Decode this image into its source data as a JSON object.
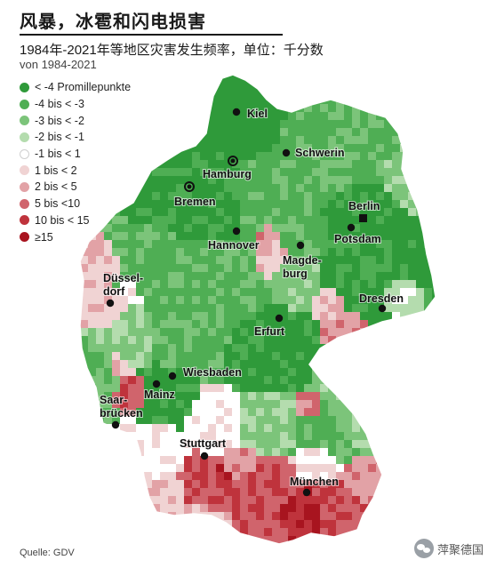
{
  "title": "风暴，冰雹和闪电损害",
  "subtitle": "1984年-2021年等地区灾害发生频率，单位：千分数",
  "subtitle2": "von 1984-2021",
  "legend": [
    {
      "label": "< -4 Promillepunkte",
      "color": "#2f9a3a"
    },
    {
      "label": "-4 bis < -3",
      "color": "#4fae54"
    },
    {
      "label": "-3 bis < -2",
      "color": "#7cc47a"
    },
    {
      "label": "-2 bis < -1",
      "color": "#b4dcae"
    },
    {
      "label": "-1 bis < 1",
      "color": "#ffffff"
    },
    {
      "label": "1 bis < 2",
      "color": "#f0d3d3"
    },
    {
      "label": "2 bis < 5",
      "color": "#e2a2a6"
    },
    {
      "label": "5 bis <10",
      "color": "#d0646c"
    },
    {
      "label": "10 bis < 15",
      "color": "#bf333c"
    },
    {
      "label": "≥15",
      "color": "#a8141f"
    }
  ],
  "cities": [
    {
      "name": "Kiel",
      "line2": "",
      "marker": "dot"
    },
    {
      "name": "Schwerin",
      "line2": "",
      "marker": "dot"
    },
    {
      "name": "Hamburg",
      "line2": "",
      "marker": "ring"
    },
    {
      "name": "Bremen",
      "line2": "",
      "marker": "ring"
    },
    {
      "name": "Berlin",
      "line2": "",
      "marker": "square"
    },
    {
      "name": "Potsdam",
      "line2": "",
      "marker": "dot"
    },
    {
      "name": "Hannover",
      "line2": "",
      "marker": "dot"
    },
    {
      "name": "Magde-",
      "line2": "burg",
      "marker": "dot"
    },
    {
      "name": "Düssel-",
      "line2": "dorf",
      "marker": "dot"
    },
    {
      "name": "Dresden",
      "line2": "",
      "marker": "dot"
    },
    {
      "name": "Erfurt",
      "line2": "",
      "marker": "dot"
    },
    {
      "name": "Wiesbaden",
      "line2": "",
      "marker": "dot"
    },
    {
      "name": "Mainz",
      "line2": "",
      "marker": "dot"
    },
    {
      "name": "Saar-",
      "line2": "brücken",
      "marker": "dot"
    },
    {
      "name": "Stuttgart",
      "line2": "",
      "marker": "dot"
    },
    {
      "name": "München",
      "line2": "",
      "marker": "dot"
    }
  ],
  "source": "Quelle: GDV",
  "watermark": "萍聚德国"
}
